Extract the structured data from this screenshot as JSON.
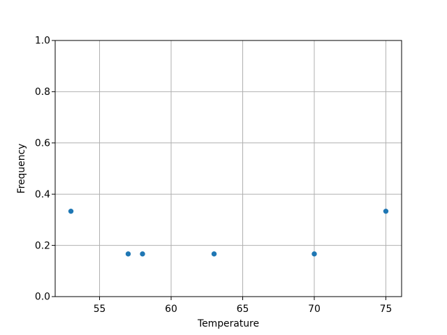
{
  "chart_data": {
    "type": "scatter",
    "title": "",
    "xlabel": "Temperature",
    "ylabel": "Frequency",
    "x": [
      53,
      57,
      58,
      63,
      70,
      75
    ],
    "y": [
      0.3333,
      0.1667,
      0.1667,
      0.1667,
      0.1667,
      0.3333
    ],
    "xlim": [
      51.9,
      76.1
    ],
    "ylim": [
      0.0,
      1.0
    ],
    "xticks": [
      55,
      60,
      65,
      70,
      75
    ],
    "xtick_labels": [
      "55",
      "60",
      "65",
      "70",
      "75"
    ],
    "yticks": [
      0.0,
      0.2,
      0.4,
      0.6,
      0.8,
      1.0
    ],
    "ytick_labels": [
      "0.0",
      "0.2",
      "0.4",
      "0.6",
      "0.8",
      "1.0"
    ],
    "grid": true,
    "legend": null,
    "colors": {
      "marker": "#1f77b4",
      "grid": "#b0b0b0",
      "spine": "#000000",
      "text": "#000000",
      "background": "#ffffff"
    },
    "marker_radius_px": 3.7
  }
}
